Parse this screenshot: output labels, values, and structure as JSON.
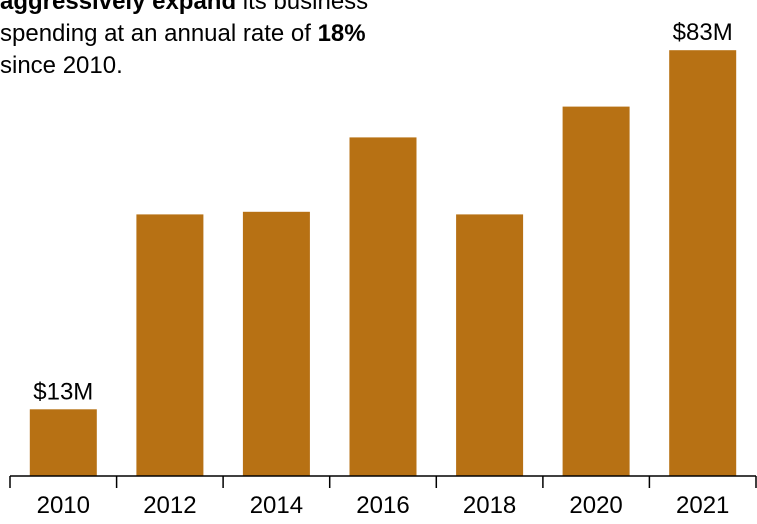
{
  "headline": {
    "line1_bold": "aggressively expand",
    "line1_rest": " its business",
    "line2_start": "spending at an annual rate of ",
    "line2_bold": "18%",
    "line3": "since 2010."
  },
  "colors": {
    "bar": "#B77114",
    "axis": "#000000"
  },
  "chart_data": {
    "type": "bar",
    "categories": [
      "2010",
      "2012",
      "2014",
      "2016",
      "2018",
      "2020",
      "2021"
    ],
    "values": [
      13,
      51,
      51.5,
      66,
      51,
      72,
      83
    ],
    "unit": "$M",
    "data_labels": {
      "2010": "$13M",
      "2021": "$83M"
    },
    "ylim": [
      0,
      90
    ],
    "grid": false,
    "legend": "none"
  }
}
